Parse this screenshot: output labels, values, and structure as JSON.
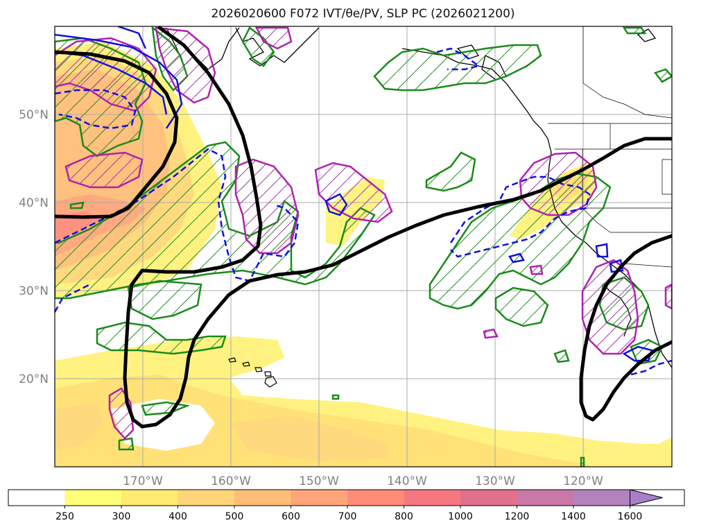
{
  "title": "2026020600 F072 IVT/θe/PV, SLP PC (2026021200)",
  "map": {
    "lat_labels": [
      "50°N",
      "40°N",
      "30°N",
      "20°N"
    ],
    "lon_labels": [
      "170°W",
      "160°W",
      "150°W",
      "140°W",
      "130°W",
      "120°W"
    ],
    "lon_range": [
      -180,
      -110
    ],
    "lat_range": [
      10,
      60
    ]
  },
  "colorbar": {
    "ticks": [
      "250",
      "300",
      "400",
      "500",
      "600",
      "700",
      "800",
      "1000",
      "1200",
      "1400",
      "1600"
    ],
    "colors": [
      "#ffff7a",
      "#ffeb70",
      "#ffd57a",
      "#ffbe78",
      "#ffa57a",
      "#ff8c7a",
      "#f57880",
      "#e0708c",
      "#c978a8",
      "#b482bd",
      "#a87fc8"
    ],
    "extend": "max"
  }
}
